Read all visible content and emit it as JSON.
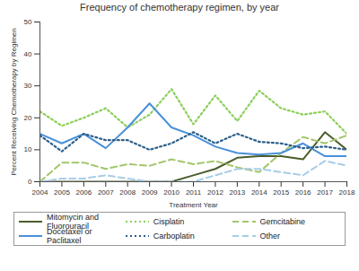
{
  "chart_data": {
    "type": "line",
    "title": "Frequency of chemotherapy regimen, by year",
    "x_label": "Treatment Year",
    "y_label": "Percent Receiving Chemotherapy by Regimen",
    "x": [
      2004,
      2005,
      2006,
      2007,
      2008,
      2009,
      2010,
      2011,
      2012,
      2013,
      2014,
      2015,
      2016,
      2017,
      2018
    ],
    "xlim": [
      2004,
      2018
    ],
    "xticks": [
      2004,
      2005,
      2006,
      2007,
      2008,
      2009,
      2010,
      2011,
      2012,
      2013,
      2014,
      2015,
      2016,
      2017,
      2018
    ],
    "ylim": [
      0,
      50
    ],
    "yticks": [
      0,
      10,
      20,
      30,
      40,
      50
    ],
    "legend": "bottom",
    "series": [
      {
        "name": "Mitomycin and Fluorouracil",
        "color": "#4b5d2b",
        "line_style": "solid",
        "values": [
          0,
          0,
          0,
          0,
          0,
          0,
          0,
          2,
          4,
          7.5,
          8,
          8,
          7,
          15.5,
          10
        ]
      },
      {
        "name": "Cisplatin",
        "color": "#8ccf5a",
        "line_style": "dotted",
        "values": [
          22,
          17.5,
          20,
          23,
          17,
          21,
          29,
          18,
          27,
          19,
          28.5,
          23,
          21,
          22,
          15
        ]
      },
      {
        "name": "Gemcitabine",
        "color": "#a3c66a",
        "line_style": "dashed",
        "values": [
          0,
          6,
          6,
          4,
          5.5,
          5,
          7,
          5.5,
          6.5,
          4.5,
          3,
          9,
          14,
          12,
          14.5
        ]
      },
      {
        "name": "Docetaxel or Paclitaxel",
        "color": "#4a90d9",
        "line_style": "solid",
        "values": [
          15,
          12,
          15,
          10.5,
          17,
          24.5,
          17,
          14.5,
          11,
          9,
          8.5,
          9,
          12,
          8,
          8
        ]
      },
      {
        "name": "Carboplatin",
        "color": "#2c5f8a",
        "line_style": "dotted",
        "values": [
          14.5,
          9.5,
          15,
          13,
          13,
          10,
          12,
          15.5,
          12,
          15,
          12.5,
          12,
          10.5,
          11,
          10
        ]
      },
      {
        "name": "Other",
        "color": "#a8cde6",
        "line_style": "dashed",
        "values": [
          0,
          1,
          1,
          2,
          1,
          0,
          0,
          0,
          2,
          4,
          4,
          3,
          2,
          6.5,
          5
        ]
      }
    ]
  }
}
